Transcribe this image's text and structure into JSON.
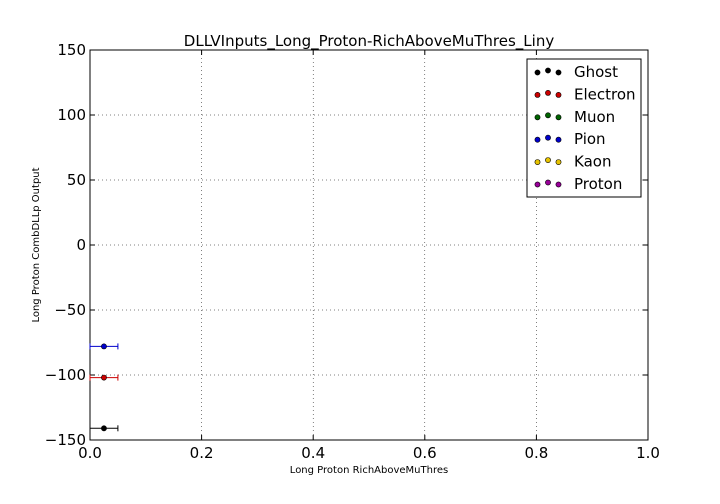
{
  "chart_data": {
    "type": "scatter",
    "title": "DLLVInputs_Long_Proton-RichAboveMuThres_Liny",
    "xlabel": "Long Proton RichAboveMuThres",
    "ylabel": "Long Proton CombDLLp Output",
    "xlim": [
      0.0,
      1.0
    ],
    "ylim": [
      -150,
      150
    ],
    "x_ticks": [
      0.0,
      0.2,
      0.4,
      0.6,
      0.8,
      1.0
    ],
    "x_tick_labels": [
      "0.0",
      "0.2",
      "0.4",
      "0.6",
      "0.8",
      "1.0"
    ],
    "y_ticks": [
      150,
      100,
      50,
      0,
      -50,
      -100,
      -150
    ],
    "y_tick_labels": [
      "150",
      "100",
      "50",
      "0",
      "−50",
      "−100",
      "−150"
    ],
    "grid": true,
    "legend_position": "top-right",
    "series": [
      {
        "name": "Ghost",
        "color": "#000000",
        "points": [
          {
            "x": 0.025,
            "y": -141,
            "xerr": 0.025
          }
        ]
      },
      {
        "name": "Electron",
        "color": "#cc0000",
        "points": [
          {
            "x": 0.025,
            "y": -102,
            "xerr": 0.025
          }
        ]
      },
      {
        "name": "Muon",
        "color": "#006400",
        "points": []
      },
      {
        "name": "Pion",
        "color": "#0000cc",
        "points": [
          {
            "x": 0.025,
            "y": -78,
            "xerr": 0.025
          }
        ]
      },
      {
        "name": "Kaon",
        "color": "#e6c200",
        "points": []
      },
      {
        "name": "Proton",
        "color": "#990099",
        "points": []
      }
    ]
  }
}
